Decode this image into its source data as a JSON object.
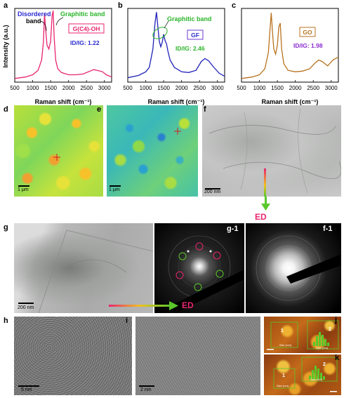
{
  "chart_data": [
    {
      "panel": "a",
      "type": "line",
      "xlabel": "Raman shift",
      "xunit": "(cm⁻¹)",
      "ylabel": "Intensity (a.u.)",
      "xlim": [
        500,
        3200
      ],
      "xticks": [
        500,
        1000,
        1500,
        2000,
        2500,
        3000
      ],
      "series": [
        {
          "color": "#e8256f",
          "x": [
            500,
            800,
            1000,
            1150,
            1250,
            1300,
            1330,
            1360,
            1400,
            1450,
            1500,
            1540,
            1570,
            1600,
            1640,
            1700,
            1800,
            2000,
            2200,
            2400,
            2600,
            2700,
            2800,
            2950,
            3050,
            3200
          ],
          "y": [
            0.05,
            0.07,
            0.1,
            0.16,
            0.3,
            0.55,
            0.93,
            0.72,
            0.5,
            0.45,
            0.55,
            0.9,
            0.97,
            0.6,
            0.3,
            0.18,
            0.13,
            0.1,
            0.1,
            0.11,
            0.15,
            0.17,
            0.16,
            0.14,
            0.1,
            0.07
          ]
        }
      ],
      "annotations": {
        "disordered_1": "Disordered",
        "disordered_2": "band",
        "graphitic_g": "G",
        "graphitic_rest": "raphitic band",
        "sample_label": "G(C4)-OH",
        "ratio_text": "ID/IG: 1.22"
      }
    },
    {
      "panel": "b",
      "type": "line",
      "xlabel": "Raman shift",
      "xunit": "(cm⁻¹)",
      "xlim": [
        500,
        3200
      ],
      "xticks": [
        500,
        1000,
        1500,
        2000,
        2500,
        3000
      ],
      "series": [
        {
          "color": "#1f22b8",
          "x": [
            500,
            800,
            1000,
            1100,
            1200,
            1260,
            1300,
            1340,
            1380,
            1420,
            1460,
            1500,
            1540,
            1580,
            1620,
            1680,
            1800,
            2000,
            2200,
            2400,
            2550,
            2650,
            2750,
            2900,
            3050,
            3200
          ],
          "y": [
            0.06,
            0.09,
            0.14,
            0.2,
            0.45,
            0.8,
            0.95,
            0.75,
            0.55,
            0.48,
            0.54,
            0.65,
            0.56,
            0.52,
            0.42,
            0.3,
            0.2,
            0.14,
            0.13,
            0.16,
            0.28,
            0.32,
            0.29,
            0.2,
            0.12,
            0.08
          ]
        }
      ],
      "annotations": {
        "graphitic_band": "Graphitic band",
        "sample_label": "GF",
        "ratio_text": "ID/IG: 2.46"
      }
    },
    {
      "panel": "c",
      "type": "line",
      "xlabel": "Raman shift",
      "xunit": "(cm⁻¹)",
      "xlim": [
        500,
        3200
      ],
      "xticks": [
        500,
        1000,
        1500,
        2000,
        2500,
        3000
      ],
      "series": [
        {
          "color": "#b8721e",
          "x": [
            500,
            800,
            1000,
            1150,
            1250,
            1300,
            1330,
            1360,
            1400,
            1450,
            1500,
            1540,
            1580,
            1620,
            1680,
            1800,
            2000,
            2200,
            2400,
            2550,
            2650,
            2750,
            2900,
            3050,
            3200
          ],
          "y": [
            0.05,
            0.07,
            0.1,
            0.18,
            0.4,
            0.75,
            0.94,
            0.7,
            0.45,
            0.38,
            0.5,
            0.75,
            0.8,
            0.45,
            0.25,
            0.16,
            0.14,
            0.15,
            0.18,
            0.26,
            0.3,
            0.28,
            0.22,
            0.3,
            0.34
          ]
        }
      ],
      "annotations": {
        "sample_label": "GO",
        "ratio_text": "ID/IG: 1.98"
      }
    }
  ],
  "panels": {
    "a": "a",
    "b": "b",
    "c": "c",
    "d": "d",
    "e": "e",
    "f": "f",
    "g": "g",
    "g1": "g-1",
    "f1": "f-1",
    "h": "h",
    "i": "i",
    "j": "j",
    "k": "k"
  },
  "scale_bars": {
    "d": "1 μm",
    "e": "1 μm",
    "f": "200 nm",
    "g": "200 nm",
    "h": "5 nm",
    "i": "2 nm"
  },
  "ed_labels": {
    "f_arrow": "ED",
    "g_arrow": "ED"
  },
  "afm": {
    "j_box1": "1",
    "j_box2": "2",
    "k_box1": "1",
    "k_box2": "2",
    "size_label": "Size (nm)"
  },
  "colors": {
    "panel_a": "#e8256f",
    "panel_b": "#1f22b8",
    "panel_c": "#b8721e",
    "disordered": "#2a2ad0",
    "graphitic": "#2bb52b",
    "ratio_a": "#2a2ad0",
    "ratio_b": "#2bb52b",
    "ratio_c": "#8a2bd0",
    "ed": "#e8256f"
  }
}
